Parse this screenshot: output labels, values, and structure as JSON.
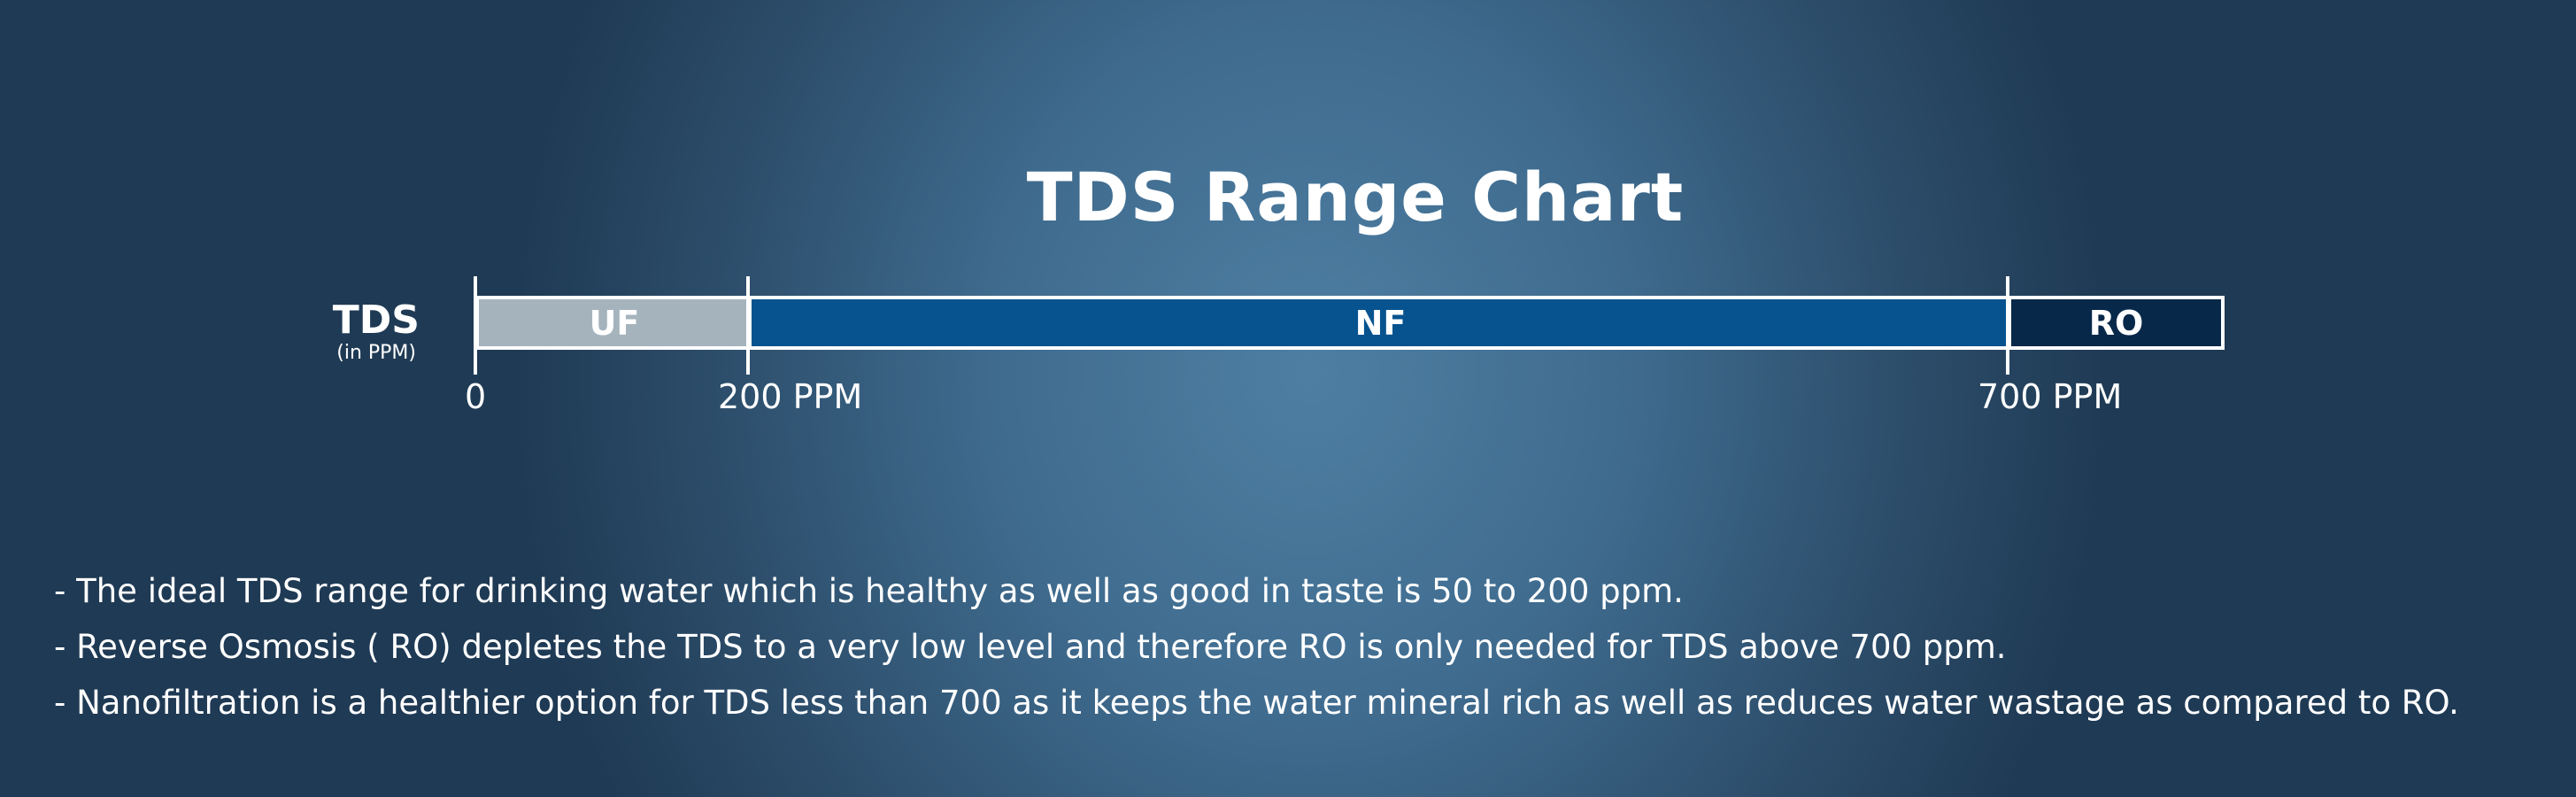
{
  "chart_data": {
    "type": "range-bar",
    "title": "TDS Range Chart",
    "axis_label": "TDS",
    "axis_unit": "(in PPM)",
    "segments": [
      {
        "label": "UF",
        "from": 0,
        "to": 200,
        "color": "#a5b3bd"
      },
      {
        "label": "NF",
        "from": 200,
        "to": 700,
        "color": "#07538f"
      },
      {
        "label": "RO",
        "from": 700,
        "to": null,
        "color": "#072849"
      }
    ],
    "ticks": [
      {
        "value": 0,
        "label": "0"
      },
      {
        "value": 200,
        "label": "200 PPM"
      },
      {
        "value": 700,
        "label": "700 PPM"
      }
    ]
  },
  "notes": [
    "- The ideal TDS range for drinking water which is healthy as well as good in taste is 50 to 200 ppm.",
    "- Reverse Osmosis ( RO) depletes the TDS to a very low level and therefore RO is only needed for TDS above 700 ppm.",
    "- Nanofiltration is a healthier option for TDS less than 700 as it keeps the water mineral rich as well as reduces water wastage as compared to RO."
  ]
}
